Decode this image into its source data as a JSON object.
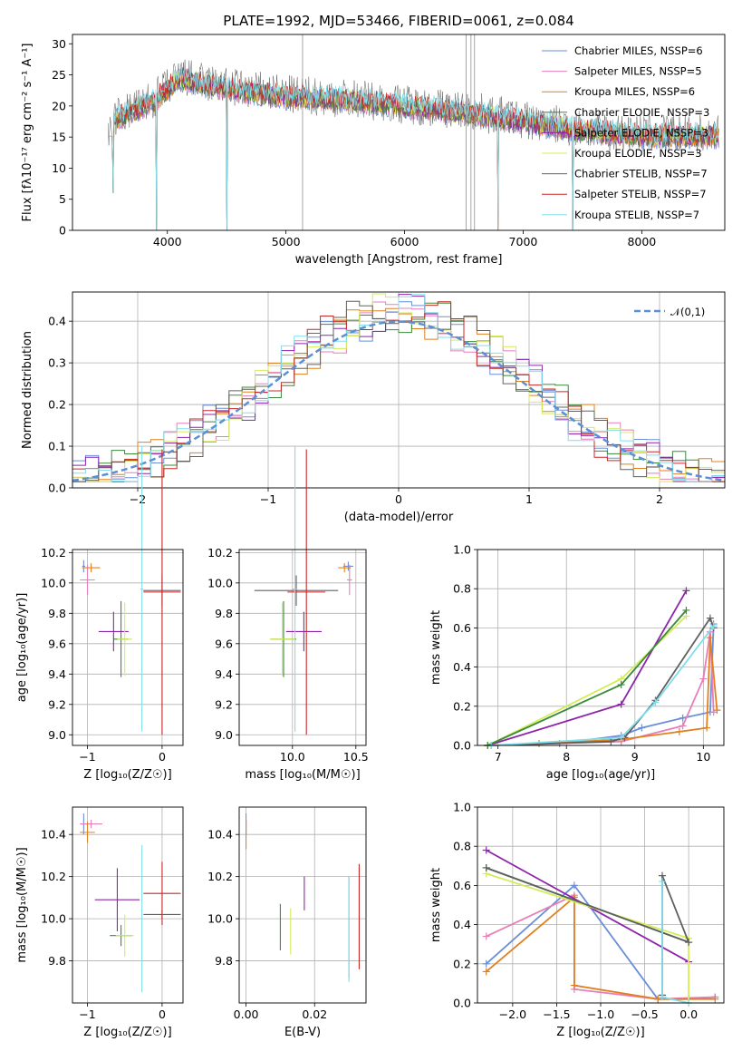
{
  "colors": [
    "#6a8fd8",
    "#e87fb8",
    "#e0801e",
    "#3a8a3a",
    "#8e24aa",
    "#d4ec5a",
    "#606060",
    "#c62828",
    "#80deea"
  ],
  "chart_data": [
    {
      "id": "spectrum",
      "type": "line",
      "title": "PLATE=1992, MJD=53466, FIBERID=0061, z=0.084",
      "xlabel": "wavelength [Angstrom, rest frame]",
      "ylabel": "Flux [fλ10⁻¹⁷ erg cm⁻² s⁻¹ A⁻¹]",
      "xlim": [
        3200,
        8700
      ],
      "ylim": [
        0,
        31.5
      ],
      "xticks": [
        4000,
        5000,
        6000,
        7000,
        8000
      ],
      "yticks": [
        0,
        5,
        10,
        15,
        20,
        25,
        30
      ],
      "legend_position": "upper-right",
      "legend": [
        {
          "name": "Chabrier MILES, NSSP=6",
          "color": "#6a8fd8"
        },
        {
          "name": "Salpeter MILES, NSSP=5",
          "color": "#e87fb8"
        },
        {
          "name": "Kroupa MILES, NSSP=6",
          "color": "#e0801e"
        },
        {
          "name": "Chabrier ELODIE, NSSP=3",
          "color": "#3a8a3a"
        },
        {
          "name": "Salpeter ELODIE, NSSP=3",
          "color": "#8e24aa"
        },
        {
          "name": "Kroupa ELODIE, NSSP=3",
          "color": "#d4ec5a"
        },
        {
          "name": "Chabrier STELIB, NSSP=7",
          "color": "#606060"
        },
        {
          "name": "Salpeter STELIB, NSSP=7",
          "color": "#c62828"
        },
        {
          "name": "Kroupa STELIB, NSSP=7",
          "color": "#80deea"
        }
      ],
      "continuum": [
        [
          3550,
          18
        ],
        [
          3700,
          19
        ],
        [
          3900,
          21
        ],
        [
          4100,
          24.5
        ],
        [
          4300,
          23.5
        ],
        [
          4600,
          22.5
        ],
        [
          5000,
          21.5
        ],
        [
          5500,
          21
        ],
        [
          6000,
          20
        ],
        [
          6500,
          19
        ],
        [
          7000,
          17.5
        ],
        [
          7500,
          16
        ],
        [
          8000,
          15.2
        ],
        [
          8500,
          15.2
        ]
      ],
      "drops": [
        [
          3540,
          6
        ],
        [
          3910,
          0
        ],
        [
          4500,
          0
        ],
        [
          6790,
          0
        ],
        [
          7420,
          0
        ]
      ]
    },
    {
      "id": "residuals",
      "type": "histogram",
      "xlabel": "(data-model)/error",
      "ylabel": "Normed distribution",
      "xlim": [
        -2.5,
        2.5
      ],
      "ylim": [
        0,
        0.47
      ],
      "xticks": [
        -2,
        -1,
        0,
        1,
        2
      ],
      "yticks": [
        0.0,
        0.1,
        0.2,
        0.3,
        0.4
      ],
      "bins": [
        -2.5,
        -2.4,
        -2.3,
        -2.2,
        -2.1,
        -2.0,
        -1.9,
        -1.8,
        -1.7,
        -1.6,
        -1.5,
        -1.4,
        -1.3,
        -1.2,
        -1.1,
        -1.0,
        -0.9,
        -0.8,
        -0.7,
        -0.6,
        -0.5,
        -0.4,
        -0.3,
        -0.2,
        -0.1,
        0.0,
        0.1,
        0.2,
        0.3,
        0.4,
        0.5,
        0.6,
        0.7,
        0.8,
        0.9,
        1.0,
        1.1,
        1.2,
        1.3,
        1.4,
        1.5,
        1.6,
        1.7,
        1.8,
        1.9,
        2.0,
        2.1,
        2.2,
        2.3,
        2.4,
        2.5
      ],
      "curve_label": "𝒩(0,1)",
      "curve_color": "#5b8fd6"
    },
    {
      "id": "age-vs-Z",
      "type": "scatter",
      "xlabel": "Z [log₁₀(Z/Z☉)]",
      "ylabel": "age  [log₁₀(age/yr)]",
      "xlim": [
        -1.2,
        0.28
      ],
      "ylim": [
        8.93,
        10.22
      ],
      "xticks": [
        -1,
        0
      ],
      "yticks": [
        9.0,
        9.2,
        9.4,
        9.6,
        9.8,
        10.0,
        10.2
      ],
      "points": [
        {
          "x": -1.05,
          "y": 10.11,
          "xerr": 0.02,
          "yerr": 0.04,
          "color": "#6a8fd8"
        },
        {
          "x": -1.0,
          "y": 10.02,
          "xerr": 0.1,
          "yerr": 0.1,
          "color": "#e87fb8"
        },
        {
          "x": -0.95,
          "y": 10.1,
          "xerr": 0.12,
          "yerr": 0.03,
          "color": "#e0801e"
        },
        {
          "x": -0.55,
          "y": 9.63,
          "xerr": 0.1,
          "yerr": 0.25,
          "color": "#3a8a3a"
        },
        {
          "x": -0.65,
          "y": 9.68,
          "xerr": 0.2,
          "yerr": 0.13,
          "color": "#8e24aa"
        },
        {
          "x": -0.5,
          "y": 9.63,
          "xerr": 0.1,
          "yerr": 0.24,
          "color": "#d4ec5a"
        },
        {
          "x": 0.0,
          "y": 9.95,
          "xerr": 0.25,
          "yerr": 0.1,
          "color": "#606060"
        },
        {
          "x": 0.0,
          "y": 9.94,
          "xerr": 0.25,
          "yerr": 0.94,
          "color": "#c62828"
        },
        {
          "x": -0.27,
          "y": 9.96,
          "xerr": 0.02,
          "yerr": 0.94,
          "color": "#80deea"
        }
      ]
    },
    {
      "id": "age-vs-mass",
      "type": "scatter",
      "xlabel": "mass [log₁₀(M/M☉)]",
      "ylabel": "",
      "xlim": [
        9.58,
        10.58
      ],
      "ylim": [
        8.93,
        10.22
      ],
      "xticks": [
        10.0,
        10.5
      ],
      "yticks": [
        9.0,
        9.2,
        9.4,
        9.6,
        9.8,
        10.0,
        10.2
      ],
      "points": [
        {
          "x": 10.44,
          "y": 10.11,
          "xerr": 0.04,
          "yerr": 0.03,
          "color": "#6a8fd8"
        },
        {
          "x": 10.45,
          "y": 10.02,
          "xerr": 0.02,
          "yerr": 0.1,
          "color": "#e87fb8"
        },
        {
          "x": 10.41,
          "y": 10.1,
          "xerr": 0.05,
          "yerr": 0.03,
          "color": "#e0801e"
        },
        {
          "x": 9.93,
          "y": 9.63,
          "xerr": 0.1,
          "yerr": 0.25,
          "color": "#3a8a3a"
        },
        {
          "x": 10.09,
          "y": 9.68,
          "xerr": 0.14,
          "yerr": 0.13,
          "color": "#8e24aa"
        },
        {
          "x": 9.92,
          "y": 9.63,
          "xerr": 0.1,
          "yerr": 0.24,
          "color": "#d4ec5a"
        },
        {
          "x": 10.03,
          "y": 9.95,
          "xerr": 0.33,
          "yerr": 0.1,
          "color": "#606060"
        },
        {
          "x": 10.11,
          "y": 9.94,
          "xerr": 0.15,
          "yerr": 0.94,
          "color": "#c62828"
        },
        {
          "x": 10.02,
          "y": 9.96,
          "xerr": 0.02,
          "yerr": 0.94,
          "color": "#80deea"
        }
      ]
    },
    {
      "id": "massweight-vs-age",
      "type": "line",
      "xlabel": "age  [log₁₀(age/yr)]",
      "ylabel": "mass weight",
      "xlim": [
        6.7,
        10.3
      ],
      "ylim": [
        0,
        1.0
      ],
      "xticks": [
        7,
        8,
        9,
        10
      ],
      "yticks": [
        0.0,
        0.2,
        0.4,
        0.6,
        0.8,
        1.0
      ],
      "series": [
        {
          "color": "#6a8fd8",
          "points": [
            [
              6.85,
              0
            ],
            [
              7.9,
              0.01
            ],
            [
              8.8,
              0.05
            ],
            [
              9.1,
              0.09
            ],
            [
              9.7,
              0.14
            ],
            [
              10.1,
              0.17
            ],
            [
              10.15,
              0.62
            ]
          ]
        },
        {
          "color": "#e87fb8",
          "points": [
            [
              6.85,
              0
            ],
            [
              8.8,
              0.02
            ],
            [
              9.7,
              0.1
            ],
            [
              10.0,
              0.34
            ],
            [
              10.1,
              0.58
            ],
            [
              10.15,
              0.17
            ]
          ]
        },
        {
          "color": "#e0801e",
          "points": [
            [
              6.85,
              0
            ],
            [
              7.6,
              0.01
            ],
            [
              8.8,
              0.03
            ],
            [
              9.65,
              0.07
            ],
            [
              10.05,
              0.09
            ],
            [
              10.1,
              0.55
            ],
            [
              10.2,
              0.18
            ]
          ]
        },
        {
          "color": "#8e24aa",
          "points": [
            [
              6.85,
              0
            ],
            [
              8.8,
              0.21
            ],
            [
              9.75,
              0.79
            ]
          ]
        },
        {
          "color": "#d4ec5a",
          "points": [
            [
              6.85,
              0
            ],
            [
              8.8,
              0.34
            ],
            [
              9.75,
              0.66
            ]
          ]
        },
        {
          "color": "#3a8a3a",
          "points": [
            [
              6.85,
              0
            ],
            [
              8.8,
              0.31
            ],
            [
              9.75,
              0.69
            ]
          ]
        },
        {
          "color": "#606060",
          "points": [
            [
              6.9,
              0
            ],
            [
              8.65,
              0.02
            ],
            [
              8.85,
              0.04
            ],
            [
              9.3,
              0.23
            ],
            [
              10.1,
              0.65
            ],
            [
              10.15,
              0.6
            ]
          ]
        },
        {
          "color": "#80deea",
          "points": [
            [
              6.9,
              0
            ],
            [
              8.8,
              0.04
            ],
            [
              9.3,
              0.22
            ],
            [
              10.15,
              0.61
            ]
          ]
        }
      ]
    },
    {
      "id": "mass-vs-Z",
      "type": "scatter",
      "xlabel": "Z [log₁₀(Z/Z☉)]",
      "ylabel": "mass [log₁₀(M/M☉)]",
      "xlim": [
        -1.2,
        0.28
      ],
      "ylim": [
        9.6,
        10.53
      ],
      "xticks": [
        -1,
        0
      ],
      "yticks": [
        9.8,
        10.0,
        10.2,
        10.4
      ],
      "points": [
        {
          "x": -1.05,
          "y": 10.45,
          "xerr": 0.02,
          "yerr": 0.05,
          "color": "#6a8fd8"
        },
        {
          "x": -0.95,
          "y": 10.45,
          "xerr": 0.15,
          "yerr": 0.02,
          "color": "#e87fb8"
        },
        {
          "x": -1.0,
          "y": 10.41,
          "xerr": 0.1,
          "yerr": 0.05,
          "color": "#e0801e"
        },
        {
          "x": -0.55,
          "y": 9.92,
          "xerr": 0.15,
          "yerr": 0.05,
          "color": "#3a8a3a"
        },
        {
          "x": -0.6,
          "y": 10.09,
          "xerr": 0.3,
          "yerr": 0.15,
          "color": "#8e24aa"
        },
        {
          "x": -0.5,
          "y": 9.92,
          "xerr": 0.12,
          "yerr": 0.1,
          "color": "#d4ec5a"
        },
        {
          "x": 0.0,
          "y": 10.02,
          "xerr": 0.25,
          "yerr": 0.02,
          "color": "#606060"
        },
        {
          "x": 0.0,
          "y": 10.12,
          "xerr": 0.25,
          "yerr": 0.15,
          "color": "#c62828"
        },
        {
          "x": -0.27,
          "y": 10.0,
          "xerr": 0.02,
          "yerr": 0.35,
          "color": "#80deea"
        }
      ]
    },
    {
      "id": "mass-vs-EBV",
      "type": "scatter",
      "xlabel": "E(B-V)",
      "ylabel": "",
      "xlim": [
        -0.002,
        0.035
      ],
      "ylim": [
        9.6,
        10.53
      ],
      "xticks": [
        0.0,
        0.02
      ],
      "yticks": [
        9.8,
        10.0,
        10.2,
        10.4
      ],
      "points": [
        {
          "x": 0.0,
          "y": 10.45,
          "xerr": 0,
          "yerr": 0.05,
          "color": "#6a8fd8"
        },
        {
          "x": 0.0,
          "y": 10.44,
          "xerr": 0,
          "yerr": 0.03,
          "color": "#e87fb8"
        },
        {
          "x": 0.0,
          "y": 10.4,
          "xerr": 0,
          "yerr": 0.07,
          "color": "#e0801e"
        },
        {
          "x": 0.01,
          "y": 9.96,
          "xerr": 0,
          "yerr": 0.11,
          "color": "#3a8a3a"
        },
        {
          "x": 0.017,
          "y": 10.12,
          "xerr": 0,
          "yerr": 0.08,
          "color": "#8e24aa"
        },
        {
          "x": 0.013,
          "y": 9.94,
          "xerr": 0,
          "yerr": 0.11,
          "color": "#d4ec5a"
        },
        {
          "x": 0.03,
          "y": 9.96,
          "xerr": 0,
          "yerr": 0.24,
          "color": "#606060"
        },
        {
          "x": 0.033,
          "y": 10.01,
          "xerr": 0,
          "yerr": 0.25,
          "color": "#c62828"
        },
        {
          "x": 0.03,
          "y": 9.95,
          "xerr": 0,
          "yerr": 0.25,
          "color": "#80deea"
        }
      ]
    },
    {
      "id": "massweight-vs-Z",
      "type": "line",
      "xlabel": "Z [log₁₀(Z/Z☉)]",
      "ylabel": "mass weight",
      "xlim": [
        -2.4,
        0.4
      ],
      "ylim": [
        0,
        1.0
      ],
      "xticks": [
        -2.0,
        -1.5,
        -1.0,
        -0.5,
        0.0
      ],
      "yticks": [
        0.0,
        0.2,
        0.4,
        0.6,
        0.8,
        1.0
      ],
      "series": [
        {
          "color": "#6a8fd8",
          "points": [
            [
              -2.3,
              0.2
            ],
            [
              -1.3,
              0.6
            ],
            [
              -0.35,
              0.02
            ],
            [
              0.0,
              0.02
            ],
            [
              0.3,
              0.03
            ]
          ]
        },
        {
          "color": "#e87fb8",
          "points": [
            [
              -2.3,
              0.34
            ],
            [
              -1.3,
              0.55
            ],
            [
              -1.3,
              0.07
            ],
            [
              -0.35,
              0.02
            ],
            [
              0.3,
              0.03
            ]
          ]
        },
        {
          "color": "#e0801e",
          "points": [
            [
              -2.3,
              0.16
            ],
            [
              -1.3,
              0.54
            ],
            [
              -1.3,
              0.09
            ],
            [
              -0.35,
              0.02
            ],
            [
              0.3,
              0.02
            ]
          ]
        },
        {
          "color": "#3a8a3a",
          "points": [
            [
              -2.3,
              0.69
            ],
            [
              0.0,
              0.31
            ]
          ]
        },
        {
          "color": "#8e24aa",
          "points": [
            [
              -2.3,
              0.78
            ],
            [
              0.0,
              0.21
            ]
          ]
        },
        {
          "color": "#d4ec5a",
          "points": [
            [
              -2.3,
              0.66
            ],
            [
              0.0,
              0.33
            ],
            [
              0.0,
              0.0
            ]
          ]
        },
        {
          "color": "#606060",
          "points": [
            [
              -2.3,
              0.69
            ],
            [
              0.0,
              0.31
            ],
            [
              -0.3,
              0.65
            ],
            [
              -0.3,
              0.04
            ]
          ]
        },
        {
          "color": "#80deea",
          "points": [
            [
              -0.3,
              0.62
            ],
            [
              -0.3,
              0.03
            ],
            [
              0.0,
              0.0
            ]
          ]
        }
      ]
    }
  ]
}
